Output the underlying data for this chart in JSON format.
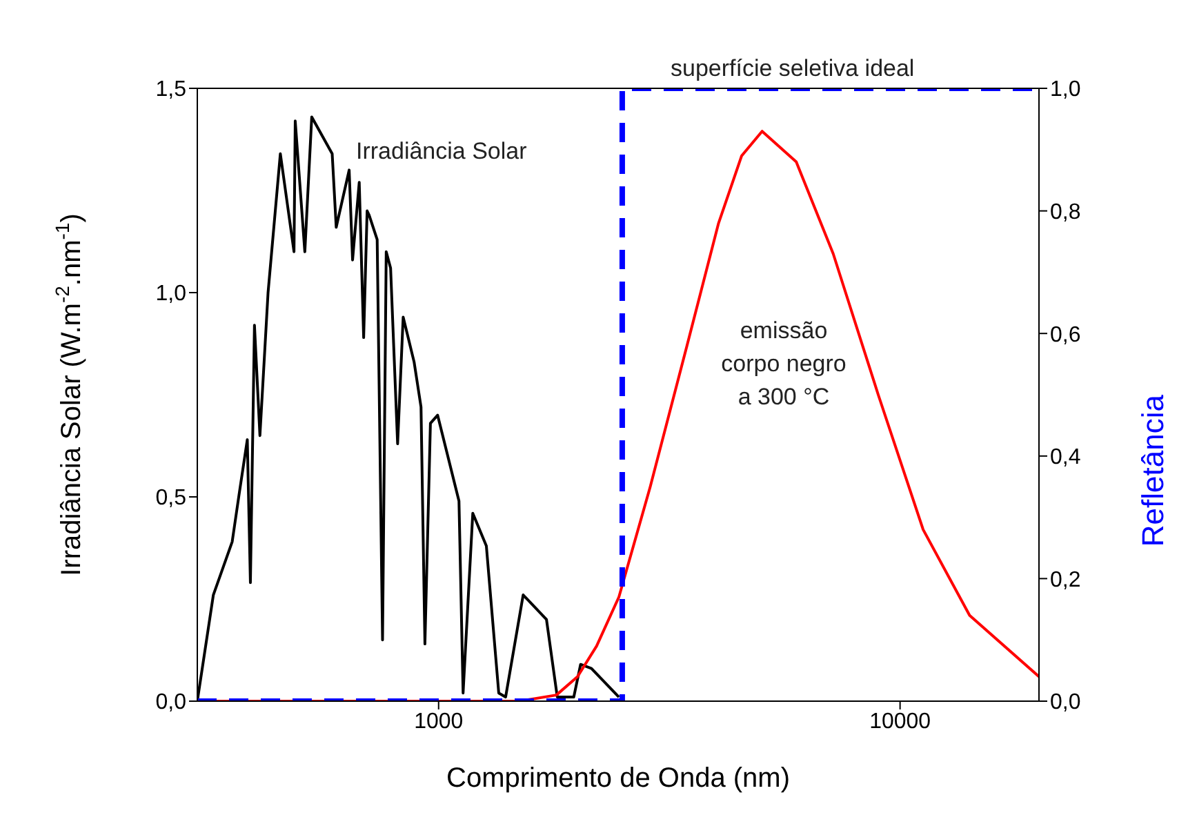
{
  "chart_data": {
    "type": "line",
    "xlabel": "Comprimento de Onda (nm)",
    "ylabel": "Irradiância Solar (W.m$^{-2}$.nm$^{-1}$)",
    "y2label": "Refletância",
    "log": "x",
    "marker": "none",
    "xlim": [
      300,
      20000
    ],
    "xticks": [
      1000,
      10000
    ],
    "ylim": [
      0,
      1.5
    ],
    "yticks": [
      {
        "value": 0,
        "label": "0,0"
      },
      {
        "value": 0.5,
        "label": "0,5"
      },
      {
        "value": 1,
        "label": "1,0"
      },
      {
        "value": 1.5,
        "label": "1,5"
      }
    ],
    "y2lim": [
      0,
      1
    ],
    "y2ticks": [
      {
        "value": 0,
        "label": "0,0"
      },
      {
        "value": 0.2,
        "label": "0,2"
      },
      {
        "value": 0.4,
        "label": "0,4"
      },
      {
        "value": 0.6,
        "label": "0,6"
      },
      {
        "value": 0.8,
        "label": "0,8"
      },
      {
        "value": 1,
        "label": "1,0"
      }
    ],
    "series": [
      {
        "color": "#000000",
        "line_style": "solid",
        "x": [
          300,
          325,
          357,
          370,
          385,
          391,
          399,
          410,
          427,
          454,
          486,
          489,
          513,
          531,
          588,
          600,
          640,
          651,
          673,
          688,
          700,
          707,
          736,
          756,
          770,
          787,
          815,
          838,
          885,
          916,
          934,
          960,
          995,
          1107,
          1130,
          1186,
          1269,
          1350,
          1397,
          1525,
          1713,
          1808,
          1963,
          2031,
          2144,
          2459
        ],
        "values": [
          0,
          0.26,
          0.39,
          0.51,
          0.64,
          0.29,
          0.92,
          0.65,
          1.0,
          1.34,
          1.1,
          1.42,
          1.1,
          1.43,
          1.34,
          1.16,
          1.3,
          1.08,
          1.27,
          0.89,
          1.2,
          1.19,
          1.13,
          0.15,
          1.1,
          1.06,
          0.63,
          0.94,
          0.83,
          0.72,
          0.14,
          0.68,
          0.7,
          0.49,
          0.02,
          0.46,
          0.38,
          0.02,
          0.01,
          0.26,
          0.2,
          0.01,
          0.01,
          0.09,
          0.08,
          0.01
        ]
      },
      {
        "color": "#ff0000",
        "line_style": "solid",
        "axis": "y2",
        "x": [
          300,
          1500,
          1800,
          2000,
          2200,
          2459,
          2875,
          3453,
          4043,
          4537,
          5024,
          5957,
          7164,
          8968,
          11220,
          14150,
          20000
        ],
        "values": [
          0,
          0,
          0.01,
          0.04,
          0.09,
          0.17,
          0.35,
          0.58,
          0.78,
          0.89,
          0.93,
          0.88,
          0.73,
          0.5,
          0.28,
          0.14,
          0.04
        ]
      },
      {
        "color": "#0000ff",
        "line_style": "dashed",
        "axis": "y2",
        "x": [
          300,
          2500,
          2500,
          20000
        ],
        "values": [
          0,
          0,
          1,
          1
        ]
      }
    ],
    "annotations": [
      "Irradiância Solar",
      "superfície seletiva ideal",
      "emissão\ncorpo negro\na 300 °C"
    ]
  }
}
